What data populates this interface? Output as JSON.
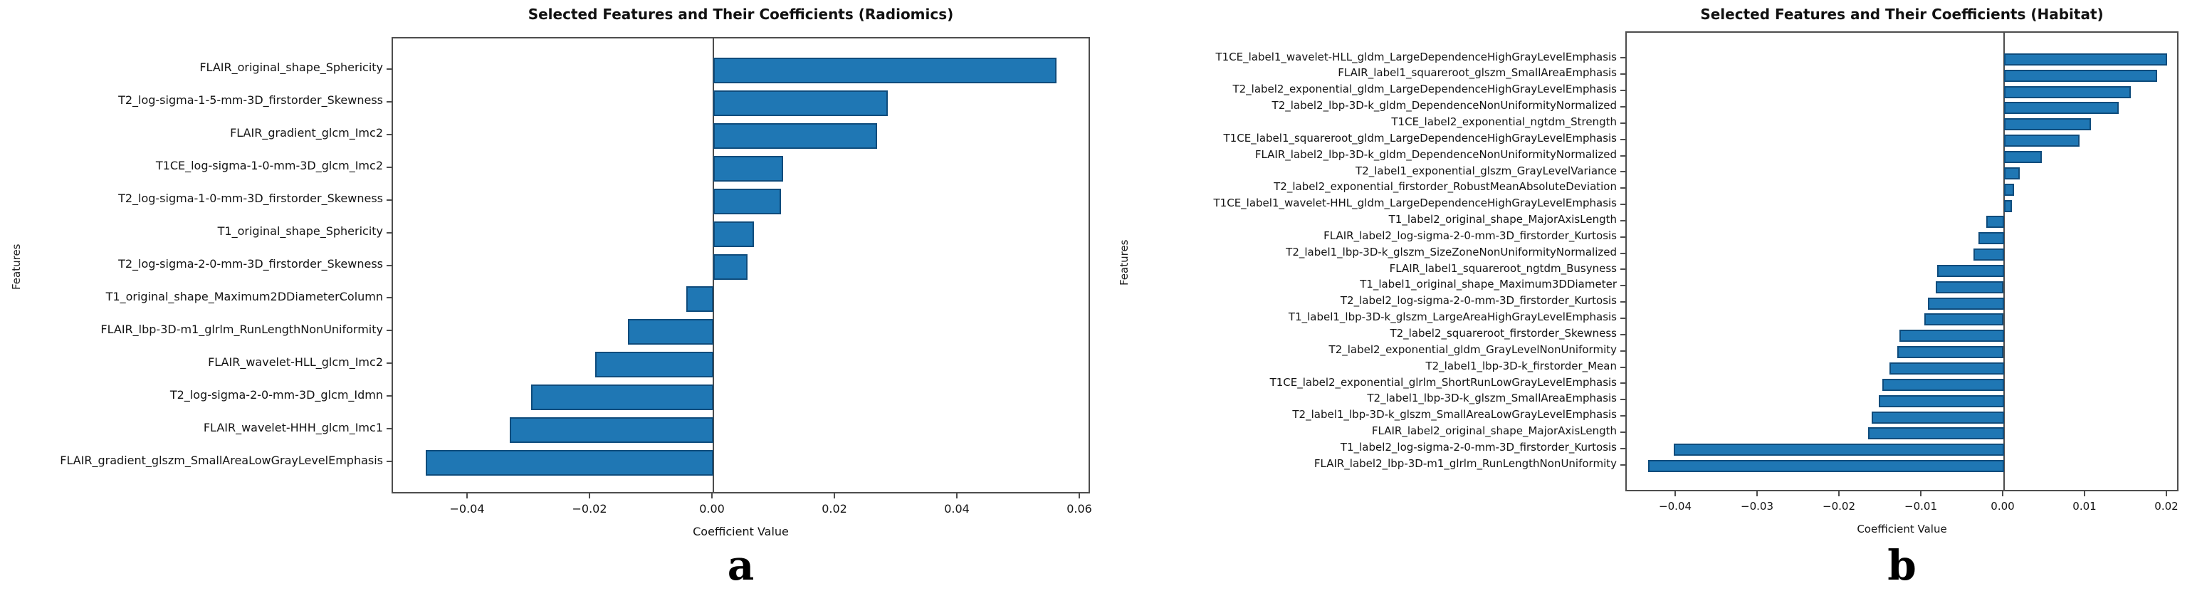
{
  "figure": {
    "background": "#ffffff"
  },
  "charts": [
    {
      "id": "a",
      "caption": "a",
      "chart_data": {
        "type": "bar",
        "orientation": "horizontal",
        "title": "Selected Features and Their Coefficients (Radiomics)",
        "xlabel": "Coefficient Value",
        "ylabel": "Features",
        "xlim": [
          -0.0523,
          0.0617
        ],
        "grid": false,
        "legend": false,
        "bar_color": "#1f77b4",
        "bar_edge_color": "#0f4c7c",
        "axis_color": "#4d4d4d",
        "xticks": [
          -0.04,
          -0.02,
          0,
          0.02,
          0.04,
          0.06
        ],
        "xtick_labels": [
          "−0.04",
          "−0.02",
          "0.00",
          "0.02",
          "0.04",
          "0.06"
        ],
        "categories": [
          "FLAIR_original_shape_Sphericity",
          "T2_log-sigma-1-5-mm-3D_firstorder_Skewness",
          "FLAIR_gradient_glcm_Imc2",
          "T1CE_log-sigma-1-0-mm-3D_glcm_Imc2",
          "T2_log-sigma-1-0-mm-3D_firstorder_Skewness",
          "T1_original_shape_Sphericity",
          "T2_log-sigma-2-0-mm-3D_firstorder_Skewness",
          "T1_original_shape_Maximum2DDiameterColumn",
          "FLAIR_lbp-3D-m1_glrlm_RunLengthNonUniformity",
          "FLAIR_wavelet-HLL_glcm_Imc2",
          "T2_log-sigma-2-0-mm-3D_glcm_Idmn",
          "FLAIR_wavelet-HHH_glcm_Imc1",
          "FLAIR_gradient_glszm_SmallAreaLowGrayLevelEmphasis"
        ],
        "values": [
          0.056,
          0.0285,
          0.0267,
          0.0114,
          0.011,
          0.0066,
          0.0056,
          -0.0044,
          -0.0139,
          -0.0193,
          -0.0298,
          -0.0332,
          -0.0469
        ]
      }
    },
    {
      "id": "b",
      "caption": "b",
      "chart_data": {
        "type": "bar",
        "orientation": "horizontal",
        "title": "Selected Features and Their Coefficients (Habitat)",
        "xlabel": "Coefficient Value",
        "ylabel": "Features",
        "xlim": [
          -0.0461,
          0.0215
        ],
        "grid": false,
        "legend": false,
        "bar_color": "#1f77b4",
        "bar_edge_color": "#0f4c7c",
        "axis_color": "#4d4d4d",
        "xticks": [
          -0.04,
          -0.03,
          -0.02,
          -0.01,
          0,
          0.01,
          0.02
        ],
        "xtick_labels": [
          "−0.04",
          "−0.03",
          "−0.02",
          "−0.01",
          "0.00",
          "0.01",
          "0.02"
        ],
        "categories": [
          "T1CE_label1_wavelet-HLL_gldm_LargeDependenceHighGrayLevelEmphasis",
          "FLAIR_label1_squareroot_glszm_SmallAreaEmphasis",
          "T2_label2_exponential_gldm_LargeDependenceHighGrayLevelEmphasis",
          "T2_label2_lbp-3D-k_gldm_DependenceNonUniformityNormalized",
          "T1CE_label2_exponential_ngtdm_Strength",
          "T1CE_label1_squareroot_gldm_LargeDependenceHighGrayLevelEmphasis",
          "FLAIR_label2_lbp-3D-k_gldm_DependenceNonUniformityNormalized",
          "T2_label1_exponential_glszm_GrayLevelVariance",
          "T2_label2_exponential_firstorder_RobustMeanAbsoluteDeviation",
          "T1CE_label1_wavelet-HHL_gldm_LargeDependenceHighGrayLevelEmphasis",
          "T1_label2_original_shape_MajorAxisLength",
          "FLAIR_label2_log-sigma-2-0-mm-3D_firstorder_Kurtosis",
          "T2_label1_lbp-3D-k_glszm_SizeZoneNonUniformityNormalized",
          "FLAIR_label1_squareroot_ngtdm_Busyness",
          "T1_label1_original_shape_Maximum3DDiameter",
          "T2_label2_log-sigma-2-0-mm-3D_firstorder_Kurtosis",
          "T1_label1_lbp-3D-k_glszm_LargeAreaHighGrayLevelEmphasis",
          "T2_label2_squareroot_firstorder_Skewness",
          "T2_label2_exponential_gldm_GrayLevelNonUniformity",
          "T2_label1_lbp-3D-k_firstorder_Mean",
          "T1CE_label2_exponential_glrlm_ShortRunLowGrayLevelEmphasis",
          "T2_label1_lbp-3D-k_glszm_SmallAreaEmphasis",
          "T2_label1_lbp-3D-k_glszm_SmallAreaLowGrayLevelEmphasis",
          "FLAIR_label2_original_shape_MajorAxisLength",
          "T1_label2_log-sigma-2-0-mm-3D_firstorder_Kurtosis",
          "FLAIR_label2_lbp-3D-m1_glrlm_RunLengthNonUniformity"
        ],
        "values": [
          0.0199,
          0.0187,
          0.0155,
          0.014,
          0.0106,
          0.0092,
          0.0046,
          0.0019,
          0.0012,
          0.001,
          -0.0022,
          -0.0031,
          -0.0037,
          -0.0082,
          -0.0083,
          -0.0093,
          -0.0097,
          -0.0128,
          -0.013,
          -0.014,
          -0.0149,
          -0.0153,
          -0.0162,
          -0.0166,
          -0.0404,
          -0.0435
        ]
      }
    }
  ]
}
